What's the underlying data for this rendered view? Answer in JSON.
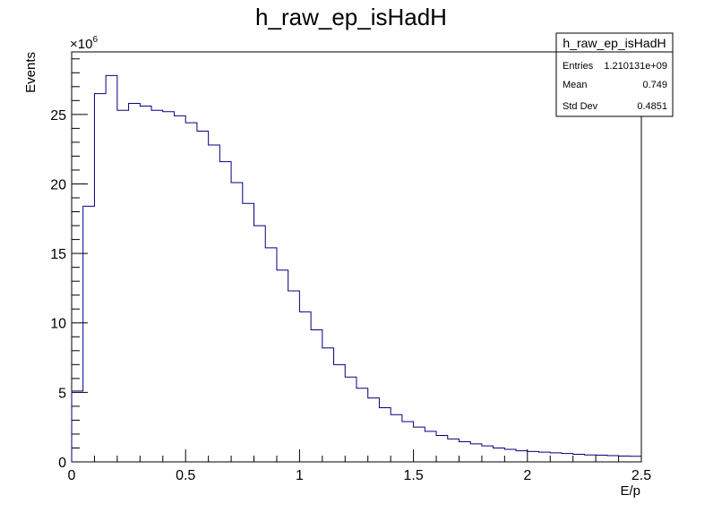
{
  "chart_data": {
    "type": "histogram",
    "title": "h_raw_ep_isHadH",
    "xlabel": "E/p",
    "ylabel": "Events",
    "y_multiplier_label": "×10",
    "y_multiplier_exponent": "6",
    "xlim": [
      0,
      2.5
    ],
    "ylim": [
      0,
      29.5
    ],
    "grid": false,
    "line_color": "#000080",
    "bin_width": 0.05,
    "bin_start": 0,
    "values": [
      5.1,
      18.4,
      26.5,
      27.8,
      25.3,
      25.8,
      25.6,
      25.3,
      25.2,
      24.9,
      24.4,
      23.8,
      22.8,
      21.6,
      20.1,
      18.6,
      17.0,
      15.4,
      13.8,
      12.3,
      10.8,
      9.5,
      8.2,
      7.0,
      6.1,
      5.3,
      4.6,
      3.9,
      3.4,
      2.9,
      2.5,
      2.2,
      1.9,
      1.65,
      1.45,
      1.3,
      1.15,
      1.0,
      0.9,
      0.8,
      0.75,
      0.7,
      0.65,
      0.6,
      0.55,
      0.5,
      0.48,
      0.45,
      0.42,
      0.4
    ],
    "x_ticks": [
      {
        "value": 0,
        "label": "0"
      },
      {
        "value": 0.5,
        "label": "0.5"
      },
      {
        "value": 1,
        "label": "1"
      },
      {
        "value": 1.5,
        "label": "1.5"
      },
      {
        "value": 2,
        "label": "2"
      },
      {
        "value": 2.5,
        "label": "2.5"
      }
    ],
    "y_ticks": [
      {
        "value": 0,
        "label": "0"
      },
      {
        "value": 5,
        "label": "5"
      },
      {
        "value": 10,
        "label": "10"
      },
      {
        "value": 15,
        "label": "15"
      },
      {
        "value": 20,
        "label": "20"
      },
      {
        "value": 25,
        "label": "25"
      }
    ],
    "stats_box": {
      "title": "h_raw_ep_isHadH",
      "placement": "top-right",
      "rows": [
        {
          "label": "Entries",
          "value": "1.210131e+09"
        },
        {
          "label": "Mean",
          "value": "0.749"
        },
        {
          "label": "Std Dev",
          "value": "0.4851"
        }
      ]
    }
  }
}
